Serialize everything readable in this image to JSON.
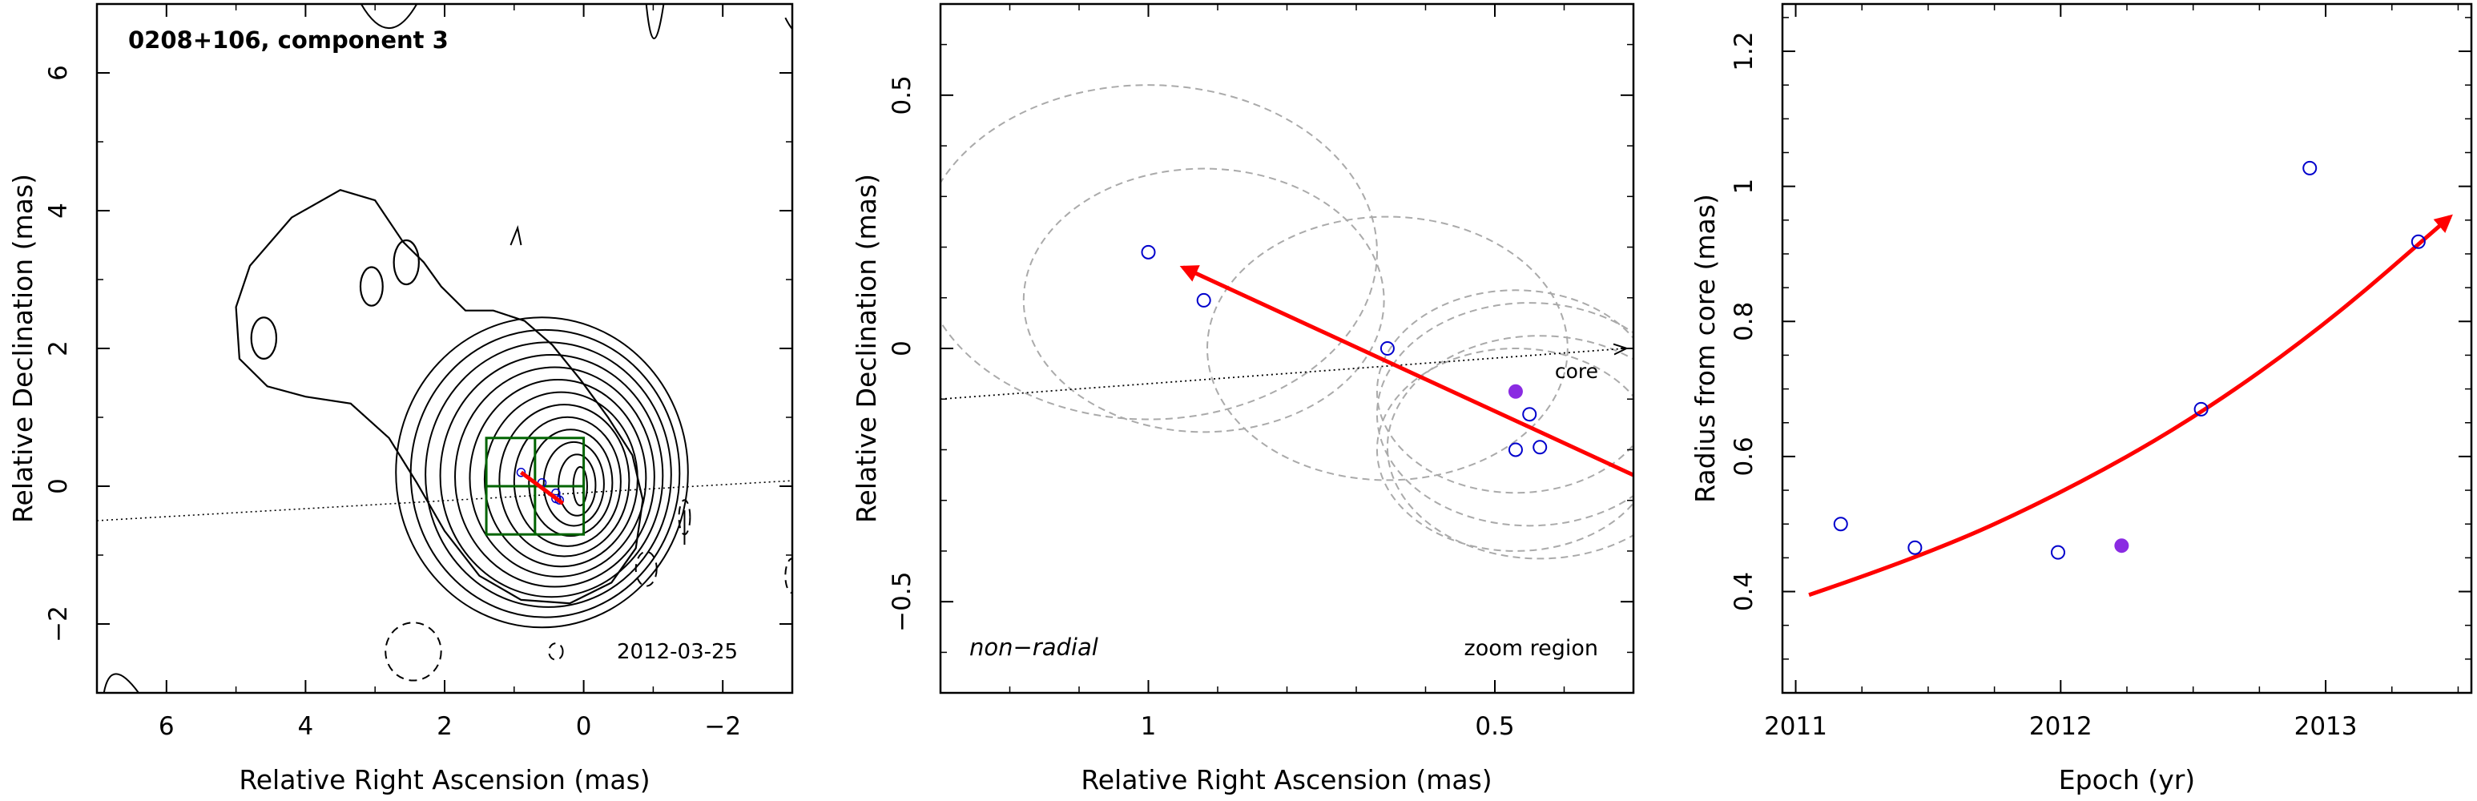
{
  "chart_data": [
    {
      "type": "contour",
      "title": "0208+106, component 3",
      "annotation": "2012-03-25",
      "xlabel": "Relative Right Ascension (mas)",
      "ylabel": "Relative Declination (mas)",
      "xlim": [
        7,
        -3
      ],
      "ylim": [
        -3,
        7
      ],
      "xticks": [
        6,
        4,
        2,
        0,
        -2
      ],
      "yticks": [
        -2,
        0,
        2,
        4,
        6
      ],
      "core_position": [
        0,
        0
      ],
      "zoom_box": {
        "x": [
          1.4,
          0
        ],
        "y": [
          -0.7,
          0.7
        ]
      },
      "motion_vector": {
        "from": [
          0.9,
          0.2
        ],
        "to": [
          0.3,
          -0.25
        ]
      },
      "colors": {
        "contour": "#000000",
        "zoom_box": "#006400",
        "vector": "#ff0000",
        "epoch_marker": "#0000cc"
      }
    },
    {
      "type": "scatter",
      "xlabel": "Relative Right Ascension (mas)",
      "ylabel": "Relative Declination (mas)",
      "xlim": [
        1.3,
        0.3
      ],
      "ylim": [
        -0.68,
        0.68
      ],
      "xticks": [
        1,
        0.5
      ],
      "yticks": [
        -0.5,
        0,
        0.5
      ],
      "labels": {
        "core": "core",
        "motion": "non−radial",
        "region": "zoom region"
      },
      "points": [
        {
          "x": 1.0,
          "y": 0.19,
          "r": 0.33,
          "epoch": 2011.17,
          "filled": false
        },
        {
          "x": 0.92,
          "y": 0.095,
          "r": 0.26,
          "epoch": 2011.45,
          "filled": false
        },
        {
          "x": 0.655,
          "y": 0.0,
          "r": 0.26,
          "epoch": 2011.99,
          "filled": false
        },
        {
          "x": 0.47,
          "y": -0.085,
          "r": 0.2,
          "epoch": 2012.23,
          "filled": true
        },
        {
          "x": 0.45,
          "y": -0.13,
          "r": 0.22,
          "epoch": 2012.53,
          "filled": false
        },
        {
          "x": 0.47,
          "y": -0.2,
          "r": 0.2,
          "epoch": 2012.94,
          "filled": false
        },
        {
          "x": 0.435,
          "y": -0.195,
          "r": 0.22,
          "epoch": 2013.35,
          "filled": false
        }
      ],
      "core_line": {
        "from": [
          1.3,
          -0.1
        ],
        "to": [
          0.3,
          0.0
        ]
      },
      "motion_vector": {
        "from": [
          0.3,
          -0.25
        ],
        "to": [
          0.95,
          0.16
        ]
      },
      "colors": {
        "points": "#0000cc",
        "filled": "#8a2be2",
        "circles": "#aaaaaa",
        "vector": "#ff0000"
      }
    },
    {
      "type": "scatter",
      "xlabel": "Epoch (yr)",
      "ylabel": "Radius from core (mas)",
      "xlim": [
        2010.95,
        2013.55
      ],
      "ylim": [
        0.25,
        1.27
      ],
      "xticks": [
        2011,
        2012,
        2013
      ],
      "yticks": [
        0.4,
        0.6,
        0.8,
        1,
        1.2
      ],
      "points": [
        {
          "x": 2011.17,
          "y": 0.5,
          "filled": false
        },
        {
          "x": 2011.45,
          "y": 0.465,
          "filled": false
        },
        {
          "x": 2011.99,
          "y": 0.458,
          "filled": false
        },
        {
          "x": 2012.23,
          "y": 0.468,
          "filled": true
        },
        {
          "x": 2012.53,
          "y": 0.67,
          "filled": false
        },
        {
          "x": 2012.94,
          "y": 1.027,
          "filled": false
        },
        {
          "x": 2013.35,
          "y": 0.918,
          "filled": false
        }
      ],
      "fit_curve": [
        [
          2011.05,
          0.395
        ],
        [
          2011.5,
          0.455
        ],
        [
          2012.0,
          0.545
        ],
        [
          2012.5,
          0.655
        ],
        [
          2013.0,
          0.795
        ],
        [
          2013.47,
          0.955
        ]
      ],
      "colors": {
        "points": "#0000cc",
        "filled": "#8a2be2",
        "fit": "#ff0000"
      }
    }
  ]
}
